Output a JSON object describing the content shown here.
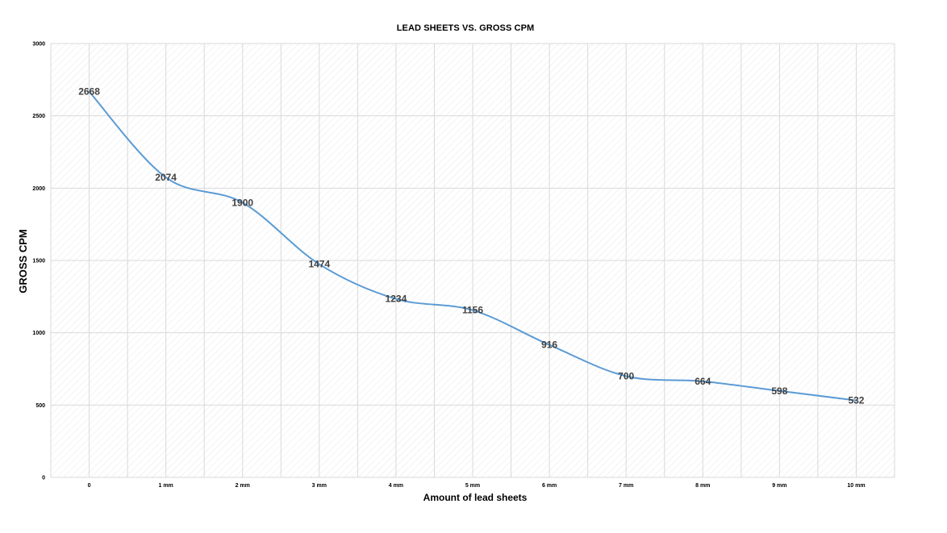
{
  "chart_data": {
    "type": "line",
    "title": "LEAD SHEETS VS. GROSS CPM",
    "xlabel": "Amount of lead sheets",
    "ylabel": "GROSS CPM",
    "categories": [
      "0",
      "1 mm",
      "2 mm",
      "3 mm",
      "4 mm",
      "5 mm",
      "6 mm",
      "7 mm",
      "8 mm",
      "9 mm",
      "10 mm"
    ],
    "series": [
      {
        "values": [
          2668,
          2074,
          1900,
          1474,
          1234,
          1156,
          916,
          700,
          664,
          598,
          532
        ],
        "color": "#5b9bd5"
      }
    ],
    "data_labels": [
      "2668",
      "2074",
      "1900",
      "1474",
      "1234",
      "1156",
      "916",
      "700",
      "664",
      "598",
      "532"
    ],
    "ylim": [
      0,
      3000
    ],
    "yticks": [
      0,
      500,
      1000,
      1500,
      2000,
      2500,
      3000
    ],
    "ytick_labels": [
      "0",
      "500",
      "1000",
      "1500",
      "2000",
      "2500",
      "3000"
    ],
    "grid": true,
    "legend": "none",
    "smooth": true
  }
}
